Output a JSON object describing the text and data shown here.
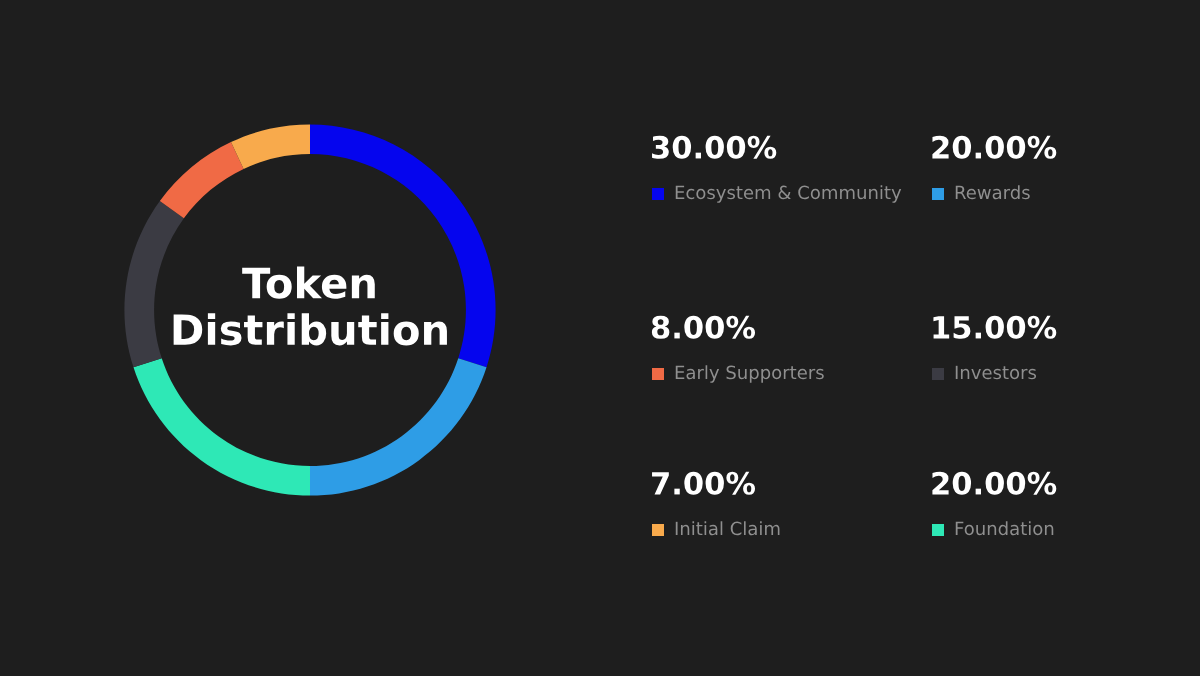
{
  "chart_data": {
    "type": "donut",
    "title": "Token Distribution",
    "categories": [
      "Ecosystem & Community",
      "Rewards",
      "Foundation",
      "Investors",
      "Early Supporters",
      "Initial Claim"
    ],
    "values": [
      30,
      20,
      20,
      15,
      8,
      7
    ],
    "value_labels": [
      "30.00%",
      "20.00%",
      "20.00%",
      "15.00%",
      "8.00%",
      "7.00%"
    ],
    "colors": [
      "#0505ee",
      "#2e9de6",
      "#2ee8b6",
      "#3b3b43",
      "#f06a45",
      "#f8aa4c"
    ],
    "legend": "right"
  }
}
